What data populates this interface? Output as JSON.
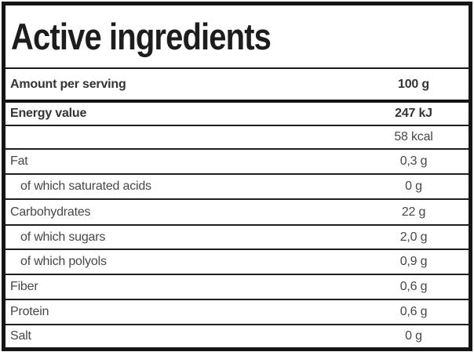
{
  "table": {
    "title": "Active ingredients",
    "serving_row": {
      "label": "Amount per serving",
      "value": "100 g"
    },
    "rows": [
      {
        "label": "Energy value",
        "value": "247 kJ"
      },
      {
        "label": "",
        "value": "58 kcal"
      },
      {
        "label": "Fat",
        "value": "0,3 g"
      },
      {
        "label": "of which saturated acids",
        "value": "0 g"
      },
      {
        "label": "Carbohydrates",
        "value": "22 g"
      },
      {
        "label": "of which sugars",
        "value": "2,0 g"
      },
      {
        "label": "of which polyols",
        "value": "0,9 g"
      },
      {
        "label": "Fiber",
        "value": "0,6 g"
      },
      {
        "label": "Protein",
        "value": "0,6 g"
      },
      {
        "label": "Salt",
        "value": "0 g"
      }
    ]
  },
  "colors": {
    "background": "#ffffff",
    "outer_border": "#161616",
    "separator": "#1f1f1f",
    "title_text": "#1d1d1d",
    "bold_text": "#343434",
    "regular_text": "#474747"
  }
}
